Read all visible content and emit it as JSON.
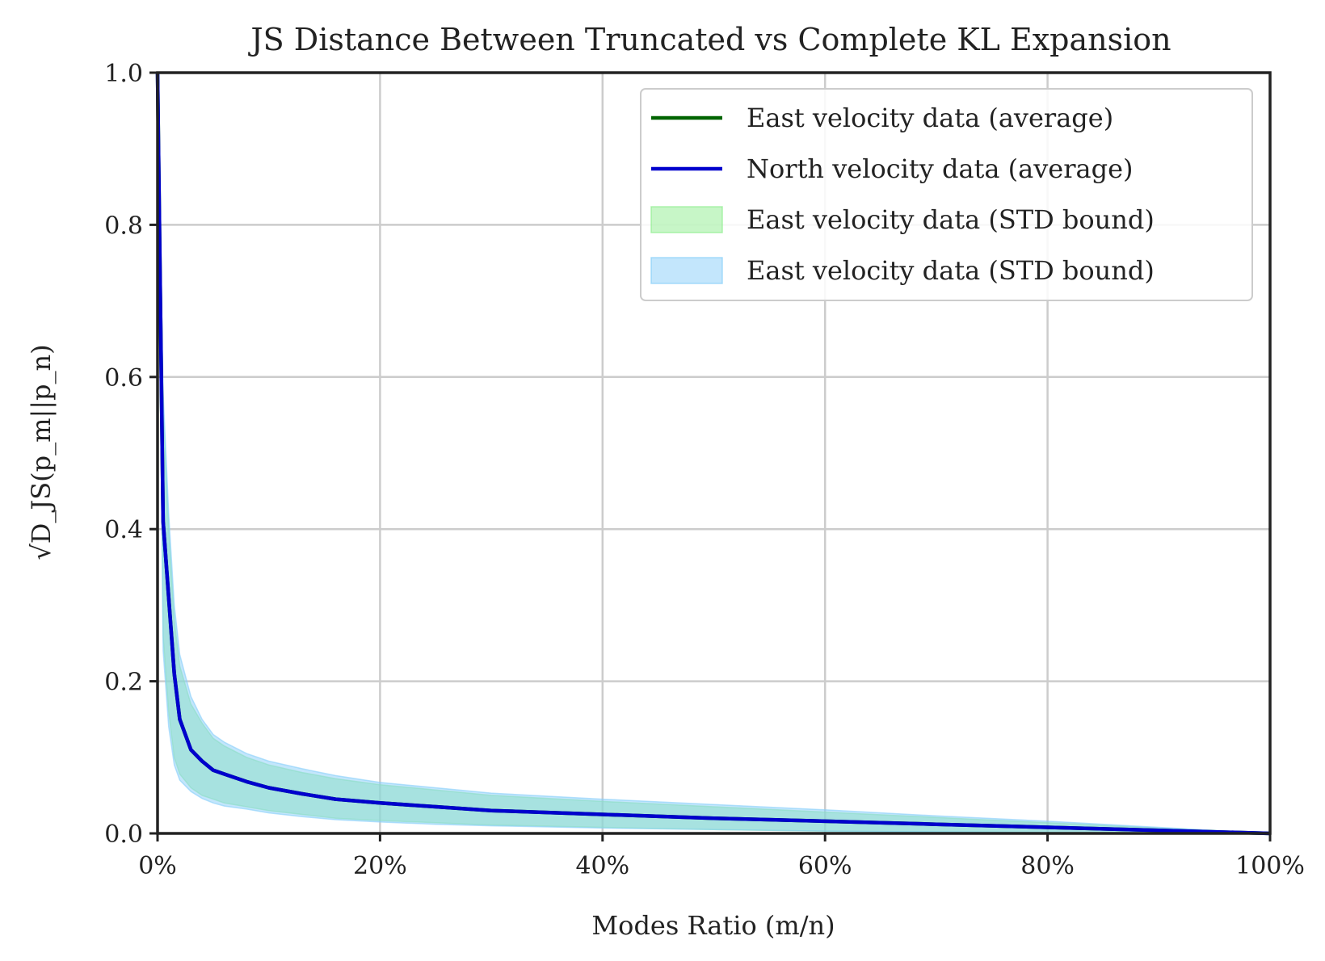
{
  "chart_data": {
    "type": "line",
    "title": "JS Distance Between Truncated vs Complete KL Expansion",
    "xlabel": "Modes Ratio (m/n)",
    "ylabel": "√D_JS(p_m||p_n)",
    "xlim": [
      0,
      100
    ],
    "ylim": [
      0,
      1
    ],
    "xticks": [
      0,
      20,
      40,
      60,
      80,
      100
    ],
    "xtick_labels": [
      "0%",
      "20%",
      "40%",
      "60%",
      "80%",
      "100%"
    ],
    "yticks": [
      0,
      0.2,
      0.4,
      0.6,
      0.8,
      1.0
    ],
    "ytick_labels": [
      "0.0",
      "0.2",
      "0.4",
      "0.6",
      "0.8",
      "1.0"
    ],
    "grid": true,
    "legend_position": "top-right",
    "x": [
      0,
      0.5,
      1,
      1.5,
      2,
      3,
      4,
      5,
      6,
      8,
      10,
      13,
      16,
      20,
      25,
      30,
      40,
      50,
      60,
      70,
      80,
      90,
      100
    ],
    "series": [
      {
        "name": "East velocity data (average)",
        "kind": "line",
        "color": "#006400",
        "values": [
          1.0,
          0.41,
          0.31,
          0.21,
          0.15,
          0.11,
          0.095,
          0.083,
          0.078,
          0.068,
          0.06,
          0.052,
          0.045,
          0.04,
          0.035,
          0.03,
          0.025,
          0.02,
          0.016,
          0.012,
          0.008,
          0.004,
          0.0
        ]
      },
      {
        "name": "North velocity data (average)",
        "kind": "line",
        "color": "#0000cd",
        "values": [
          1.0,
          0.41,
          0.31,
          0.21,
          0.15,
          0.11,
          0.095,
          0.083,
          0.078,
          0.068,
          0.06,
          0.052,
          0.045,
          0.04,
          0.035,
          0.03,
          0.025,
          0.02,
          0.016,
          0.012,
          0.008,
          0.004,
          0.0
        ]
      },
      {
        "name": "East velocity data (STD bound)",
        "kind": "band",
        "color": "#90ee90",
        "upper": [
          1.0,
          0.56,
          0.4,
          0.28,
          0.22,
          0.17,
          0.145,
          0.125,
          0.115,
          0.1,
          0.09,
          0.08,
          0.072,
          0.064,
          0.057,
          0.05,
          0.042,
          0.035,
          0.028,
          0.021,
          0.014,
          0.007,
          0.0
        ],
        "lower": [
          1.0,
          0.26,
          0.16,
          0.1,
          0.078,
          0.06,
          0.05,
          0.045,
          0.04,
          0.035,
          0.03,
          0.025,
          0.02,
          0.017,
          0.014,
          0.011,
          0.008,
          0.005,
          0.003,
          0.002,
          0.001,
          0.0,
          0.0
        ]
      },
      {
        "name": "East velocity data (STD bound)",
        "kind": "band",
        "color": "#87cefa",
        "upper": [
          1.0,
          0.58,
          0.42,
          0.3,
          0.235,
          0.18,
          0.15,
          0.13,
          0.12,
          0.105,
          0.095,
          0.085,
          0.076,
          0.067,
          0.06,
          0.053,
          0.045,
          0.038,
          0.031,
          0.023,
          0.016,
          0.008,
          0.0
        ],
        "lower": [
          1.0,
          0.24,
          0.14,
          0.09,
          0.07,
          0.055,
          0.046,
          0.04,
          0.036,
          0.032,
          0.027,
          0.022,
          0.018,
          0.015,
          0.012,
          0.01,
          0.007,
          0.005,
          0.003,
          0.002,
          0.001,
          0.0,
          0.0
        ]
      }
    ]
  }
}
